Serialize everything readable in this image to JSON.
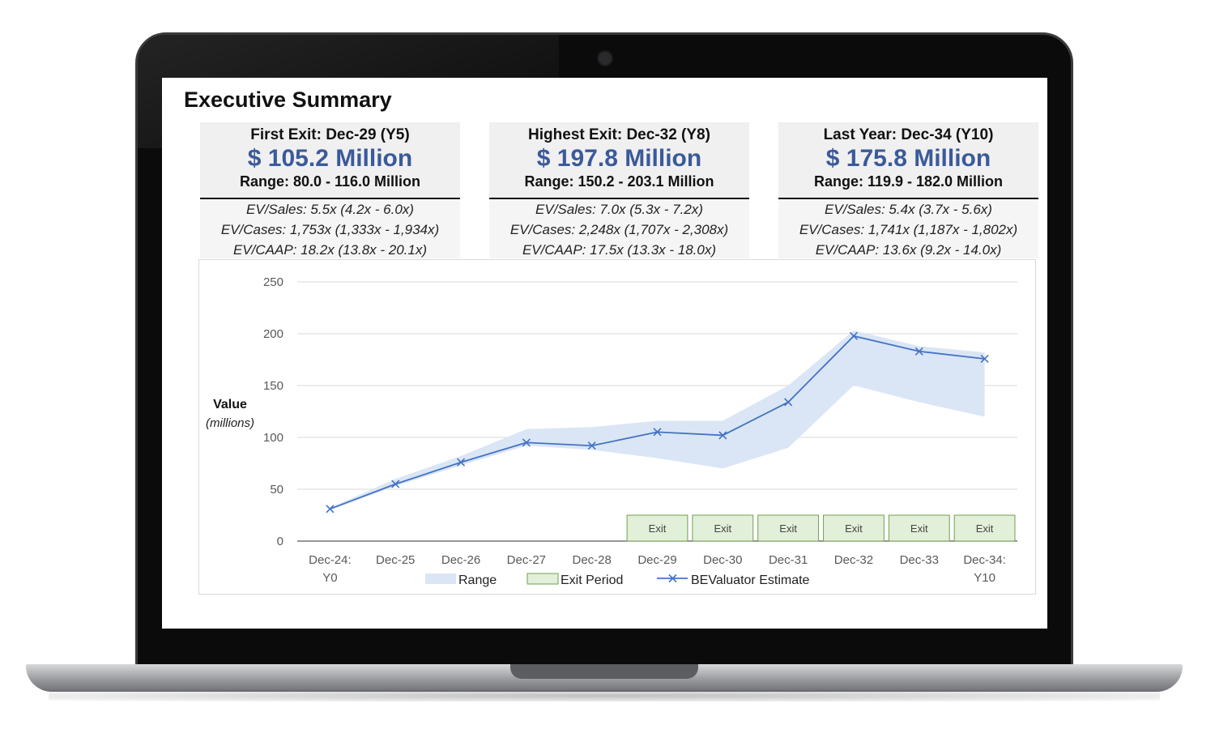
{
  "page": {
    "title": "Executive Summary"
  },
  "cards": [
    {
      "label": "First Exit:  Dec-29 (Y5)",
      "value": "$ 105.2 Million",
      "range": "Range: 80.0 - 116.0 Million",
      "ev_sales": "EV/Sales:  5.5x (4.2x - 6.0x)",
      "ev_cases": "EV/Cases:  1,753x (1,333x - 1,934x)",
      "ev_caap": "EV/CAAP:  18.2x (13.8x - 20.1x)"
    },
    {
      "label": "Highest Exit:  Dec-32 (Y8)",
      "value": "$ 197.8 Million",
      "range": "Range: 150.2 - 203.1 Million",
      "ev_sales": "EV/Sales:  7.0x (5.3x - 7.2x)",
      "ev_cases": "EV/Cases:  2,248x (1,707x - 2,308x)",
      "ev_caap": "EV/CAAP:  17.5x (13.3x - 18.0x)"
    },
    {
      "label": "Last  Year:  Dec-34 (Y10)",
      "value": "$ 175.8 Million",
      "range": "Range: 119.9 - 182.0 Million",
      "ev_sales": "EV/Sales:  5.4x (3.7x - 5.6x)",
      "ev_cases": "EV/Cases:  1,741x (1,187x - 1,802x)",
      "ev_caap": "EV/CAAP:  13.6x (9.2x - 14.0x)"
    }
  ],
  "chart_data": {
    "type": "line",
    "ylabel": "Value",
    "ylabel_sub": "(millions)",
    "ylim": [
      0,
      250
    ],
    "yticks": [
      0,
      50,
      100,
      150,
      200,
      250
    ],
    "grid": true,
    "categories": [
      "Dec-24: Y0",
      "Dec-25",
      "Dec-26",
      "Dec-27",
      "Dec-28",
      "Dec-29",
      "Dec-30",
      "Dec-31",
      "Dec-32",
      "Dec-33",
      "Dec-34: Y10"
    ],
    "category_lines": [
      [
        "Dec-24:",
        "Y0"
      ],
      [
        "Dec-25"
      ],
      [
        "Dec-26"
      ],
      [
        "Dec-27"
      ],
      [
        "Dec-28"
      ],
      [
        "Dec-29"
      ],
      [
        "Dec-30"
      ],
      [
        "Dec-31"
      ],
      [
        "Dec-32"
      ],
      [
        "Dec-33"
      ],
      [
        "Dec-34:",
        "Y10"
      ]
    ],
    "series": [
      {
        "name": "BEValuator Estimate",
        "color": "#4472c4",
        "marker": "x",
        "values": [
          31,
          55,
          76,
          95,
          92,
          105.2,
          102,
          134,
          197.8,
          183,
          175.8
        ]
      }
    ],
    "range": {
      "name": "Range",
      "color": "#dae6f5",
      "low": [
        30,
        53,
        73,
        92,
        88,
        80,
        70,
        90,
        150.2,
        134,
        119.9
      ],
      "high": [
        32,
        60,
        82,
        108,
        110,
        116,
        116,
        150,
        203.1,
        188,
        182
      ]
    },
    "exit_period": {
      "name": "Exit Period",
      "label": "Exit",
      "fill": "#e2efd9",
      "stroke": "#70a050",
      "categories": [
        "Dec-29",
        "Dec-30",
        "Dec-31",
        "Dec-32",
        "Dec-33",
        "Dec-34: Y10"
      ],
      "value": 25
    },
    "legend": [
      "Range",
      "Exit Period",
      "BEValuator Estimate"
    ],
    "legend_position": "bottom"
  }
}
